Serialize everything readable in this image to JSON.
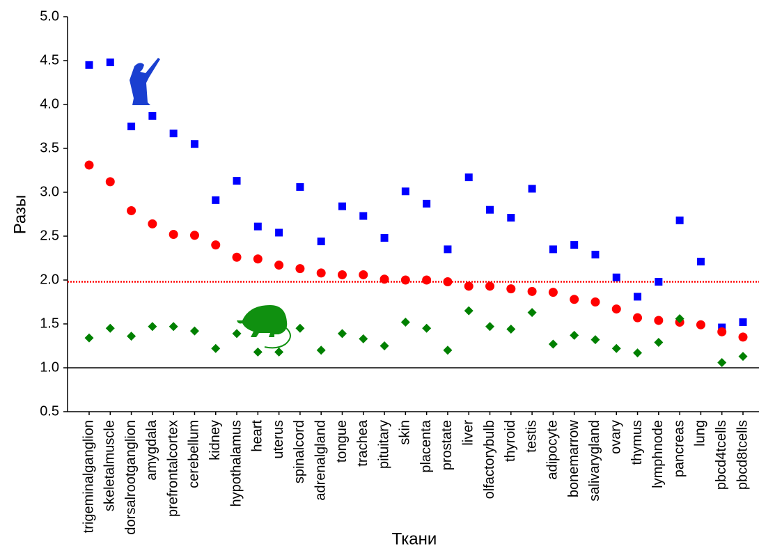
{
  "chart_data": {
    "type": "scatter",
    "xlabel": "Ткани",
    "ylabel": "Разы",
    "categories": [
      "trigeminalganglion",
      "skeletalmuscle",
      "dorsalrootganglion",
      "amygdala",
      "prefrontalcortex",
      "cerebellum",
      "kidney",
      "hypothalamus",
      "heart",
      "uterus",
      "spinalcord",
      "adrenalgland",
      "tongue",
      "trachea",
      "pituitary",
      "skin",
      "placenta",
      "prostate",
      "liver",
      "olfactorybulb",
      "thyroid",
      "testis",
      "adipocyte",
      "bonemarrow",
      "salivarygland",
      "ovary",
      "thymus",
      "lymphnode",
      "pancreas",
      "lung",
      "pbcd4tcells",
      "pbcd8tcells"
    ],
    "series": [
      {
        "color": "#0000ff",
        "marker": "square",
        "values": [
          4.45,
          4.48,
          3.75,
          3.87,
          3.67,
          3.55,
          2.91,
          3.13,
          2.61,
          2.54,
          3.06,
          2.44,
          2.84,
          2.73,
          2.48,
          3.01,
          2.87,
          2.35,
          3.17,
          2.8,
          2.71,
          3.04,
          2.35,
          2.4,
          2.29,
          2.03,
          1.81,
          1.98,
          2.68,
          2.21,
          1.46,
          1.52
        ]
      },
      {
        "color": "#ff0000",
        "marker": "circle",
        "values": [
          3.31,
          3.12,
          2.79,
          2.64,
          2.52,
          2.51,
          2.4,
          2.26,
          2.24,
          2.17,
          2.13,
          2.08,
          2.06,
          2.06,
          2.01,
          2.0,
          2.0,
          1.98,
          1.93,
          1.93,
          1.9,
          1.87,
          1.86,
          1.78,
          1.75,
          1.67,
          1.57,
          1.54,
          1.52,
          1.49,
          1.41,
          1.35
        ]
      },
      {
        "color": "#008000",
        "marker": "diamond",
        "values": [
          1.34,
          1.45,
          1.36,
          1.47,
          1.47,
          1.42,
          1.22,
          1.39,
          1.18,
          1.18,
          1.45,
          1.2,
          1.39,
          1.33,
          1.25,
          1.52,
          1.45,
          1.2,
          1.65,
          1.47,
          1.44,
          1.63,
          1.27,
          1.37,
          1.32,
          1.22,
          1.17,
          1.29,
          1.56,
          null,
          1.06,
          1.13
        ]
      }
    ],
    "reference_lines": [
      {
        "value": 1,
        "color": "#000000",
        "style": "solid"
      },
      {
        "value": 1.98,
        "color": "#ff0000",
        "style": "dotted"
      }
    ],
    "ylim": [
      0.5,
      5
    ],
    "yticks": [
      {
        "value": 0.5,
        "label": "0.5"
      },
      {
        "value": 1,
        "label": "1.0"
      },
      {
        "value": 1.5,
        "label": "1.5"
      },
      {
        "value": 2,
        "label": "2.0"
      },
      {
        "value": 2.5,
        "label": "2.5"
      },
      {
        "value": 3,
        "label": "3.0"
      },
      {
        "value": 3.5,
        "label": "3.5"
      },
      {
        "value": 4,
        "label": "4.0"
      },
      {
        "value": 4.5,
        "label": "4.5"
      },
      {
        "value": 5,
        "label": "5.0"
      }
    ],
    "grid": false
  }
}
